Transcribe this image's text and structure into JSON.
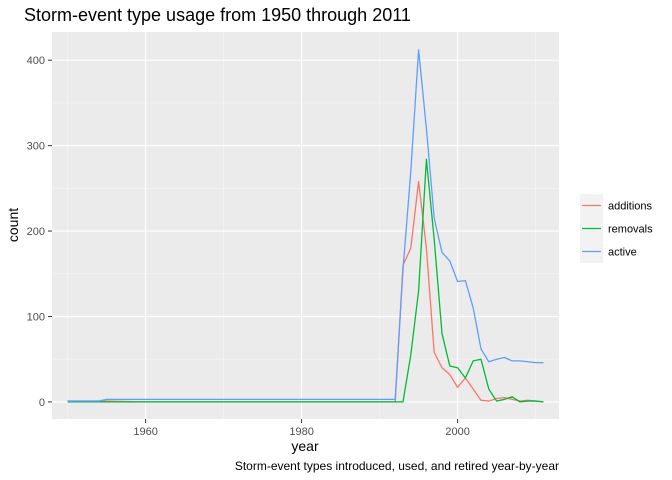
{
  "chart_data": {
    "type": "line",
    "title": "Storm-event type usage from 1950 through 2011",
    "xlabel": "year",
    "ylabel": "count",
    "caption": "Storm-event types introduced, used, and retired year-by-year",
    "xlim": [
      1948,
      2013
    ],
    "ylim": [
      -20,
      433
    ],
    "x_ticks": [
      1960,
      1980,
      2000
    ],
    "y_ticks": [
      0,
      100,
      200,
      300,
      400
    ],
    "grid": true,
    "legend_position": "right",
    "series": [
      {
        "name": "additions",
        "color": "#F8766D",
        "points": [
          [
            1950,
            1
          ],
          [
            1955,
            1
          ],
          [
            1960,
            0
          ],
          [
            1970,
            0
          ],
          [
            1980,
            0
          ],
          [
            1990,
            0
          ],
          [
            1992,
            0
          ],
          [
            1993,
            160
          ],
          [
            1994,
            180
          ],
          [
            1995,
            258
          ],
          [
            1996,
            180
          ],
          [
            1997,
            58
          ],
          [
            1998,
            40
          ],
          [
            1999,
            32
          ],
          [
            2000,
            17
          ],
          [
            2001,
            28
          ],
          [
            2002,
            15
          ],
          [
            2003,
            2
          ],
          [
            2004,
            1
          ],
          [
            2005,
            4
          ],
          [
            2006,
            5
          ],
          [
            2007,
            3
          ],
          [
            2008,
            1
          ],
          [
            2009,
            2
          ],
          [
            2010,
            1
          ],
          [
            2011,
            0
          ]
        ]
      },
      {
        "name": "removals",
        "color": "#00BA38",
        "points": [
          [
            1950,
            0
          ],
          [
            1955,
            0
          ],
          [
            1960,
            0
          ],
          [
            1970,
            0
          ],
          [
            1980,
            0
          ],
          [
            1990,
            0
          ],
          [
            1992,
            0
          ],
          [
            1993,
            0
          ],
          [
            1994,
            55
          ],
          [
            1995,
            130
          ],
          [
            1996,
            284
          ],
          [
            1997,
            190
          ],
          [
            1998,
            80
          ],
          [
            1999,
            42
          ],
          [
            2000,
            40
          ],
          [
            2001,
            28
          ],
          [
            2002,
            48
          ],
          [
            2003,
            50
          ],
          [
            2004,
            15
          ],
          [
            2005,
            1
          ],
          [
            2006,
            3
          ],
          [
            2007,
            6
          ],
          [
            2008,
            0
          ],
          [
            2009,
            1
          ],
          [
            2010,
            1
          ],
          [
            2011,
            0
          ]
        ]
      },
      {
        "name": "active",
        "color": "#619CFF",
        "points": [
          [
            1950,
            1
          ],
          [
            1951,
            1
          ],
          [
            1952,
            1
          ],
          [
            1953,
            1
          ],
          [
            1954,
            1
          ],
          [
            1955,
            3
          ],
          [
            1956,
            3
          ],
          [
            1960,
            3
          ],
          [
            1970,
            3
          ],
          [
            1980,
            3
          ],
          [
            1990,
            3
          ],
          [
            1992,
            3
          ],
          [
            1993,
            155
          ],
          [
            1994,
            270
          ],
          [
            1995,
            412
          ],
          [
            1996,
            320
          ],
          [
            1997,
            215
          ],
          [
            1998,
            175
          ],
          [
            1999,
            165
          ],
          [
            2000,
            141
          ],
          [
            2001,
            142
          ],
          [
            2002,
            110
          ],
          [
            2003,
            62
          ],
          [
            2004,
            47
          ],
          [
            2005,
            50
          ],
          [
            2006,
            52
          ],
          [
            2007,
            48
          ],
          [
            2008,
            48
          ],
          [
            2009,
            47
          ],
          [
            2010,
            46
          ],
          [
            2011,
            46
          ]
        ]
      }
    ]
  }
}
